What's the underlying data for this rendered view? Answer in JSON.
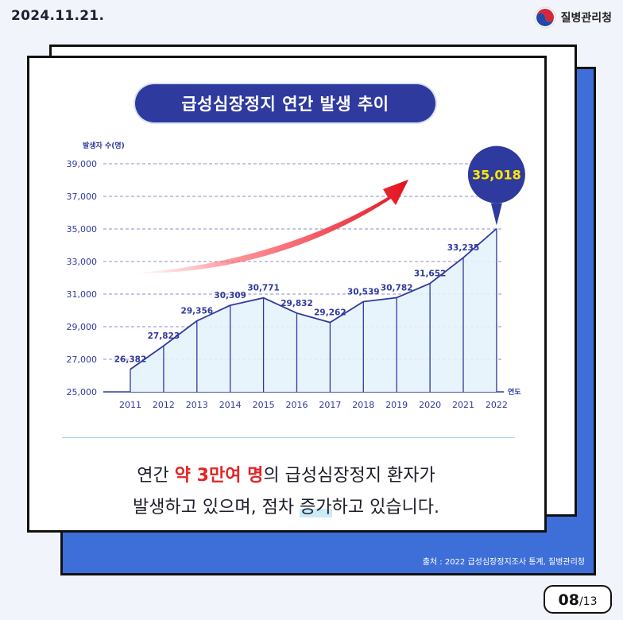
{
  "header": {
    "date": "2024.11.21.",
    "agency": "질병관리청"
  },
  "title": "급성심장정지 연간 발생 추이",
  "chart_data": {
    "type": "area",
    "ylabel": "발생자 수(명)",
    "xlabel": "연도",
    "ylim": [
      25000,
      39000
    ],
    "yticks": [
      "25,000",
      "27,000",
      "29,000",
      "31,000",
      "33,000",
      "35,000",
      "37,000",
      "39,000"
    ],
    "categories": [
      "2011",
      "2012",
      "2013",
      "2014",
      "2015",
      "2016",
      "2017",
      "2018",
      "2019",
      "2020",
      "2021",
      "2022"
    ],
    "values": [
      26382,
      27823,
      29356,
      30309,
      30771,
      29832,
      29262,
      30539,
      30782,
      31652,
      33235,
      35018
    ],
    "value_labels": [
      "26,382",
      "27,823",
      "29,356",
      "30,309",
      "30,771",
      "29,832",
      "29,262",
      "30,539",
      "30,782",
      "31,652",
      "33,235",
      "35,018"
    ],
    "highlight": "35,018",
    "grid": true,
    "colors": {
      "line": "#2f3a9e",
      "fill": "#e6f3fb",
      "arrow": "#e81d2a",
      "bubble": "#2f3a9e",
      "bubble_text": "#ffe600"
    }
  },
  "caption": {
    "line1_pre": "연간 ",
    "line1_em": "약 3만여 명",
    "line1_post": "의 급성심장정지 환자가",
    "line2_pre": "발생하고 있으며, 점차 ",
    "line2_hl": "증가",
    "line2_post": "하고 있습니다."
  },
  "source": "출처 : 2022 급성심장정지조사 통계, 질병관리청",
  "pagination": {
    "current": "08",
    "total": "/13"
  }
}
